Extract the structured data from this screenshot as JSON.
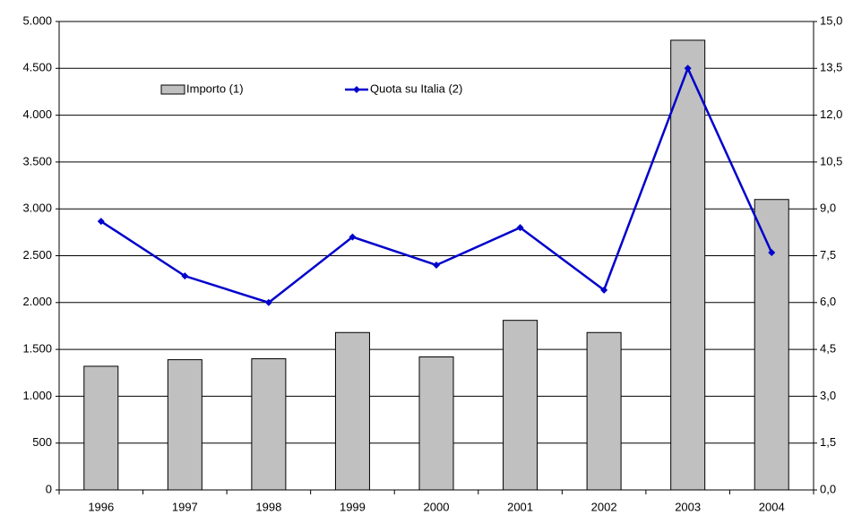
{
  "chart_data": {
    "type": "bar-line",
    "categories": [
      "1996",
      "1997",
      "1998",
      "1999",
      "2000",
      "2001",
      "2002",
      "2003",
      "2004"
    ],
    "series": [
      {
        "name": "Importo (1)",
        "type": "bar",
        "axis": "y",
        "color": "#c0c0c0",
        "values": [
          1320,
          1390,
          1400,
          1680,
          1420,
          1810,
          1680,
          4800,
          3100
        ]
      },
      {
        "name": "Quota su Italia (2)",
        "type": "line",
        "axis": "y2",
        "color": "#0000cc",
        "values": [
          8.6,
          6.85,
          6.0,
          8.1,
          7.2,
          8.4,
          6.4,
          13.5,
          7.6
        ]
      }
    ],
    "ylim": [
      0,
      5000
    ],
    "yticks": [
      0,
      500,
      {
        "value": 1000,
        "label": "1.000"
      },
      {
        "value": 1500,
        "label": "1.500"
      },
      {
        "value": 2000,
        "label": "2.000"
      },
      {
        "value": 2500,
        "label": "2.500"
      },
      {
        "value": 3000,
        "label": "3.000"
      },
      {
        "value": 3500,
        "label": "3.500"
      },
      {
        "value": 4000,
        "label": "4.000"
      },
      {
        "value": 4500,
        "label": "4.500"
      },
      {
        "value": 5000,
        "label": "5.000"
      }
    ],
    "y2lim": [
      0,
      15
    ],
    "y2ticks": [
      {
        "value": 0,
        "label": "0,0"
      },
      {
        "value": 1.5,
        "label": "1,5"
      },
      {
        "value": 3,
        "label": "3,0"
      },
      {
        "value": 4.5,
        "label": "4,5"
      },
      {
        "value": 6,
        "label": "6,0"
      },
      {
        "value": 7.5,
        "label": "7,5"
      },
      {
        "value": 9,
        "label": "9,0"
      },
      {
        "value": 10.5,
        "label": "10,5"
      },
      {
        "value": 12,
        "label": "12,0"
      },
      {
        "value": 13.5,
        "label": "13,5"
      },
      {
        "value": 15,
        "label": "15,0"
      }
    ],
    "grid": true
  }
}
